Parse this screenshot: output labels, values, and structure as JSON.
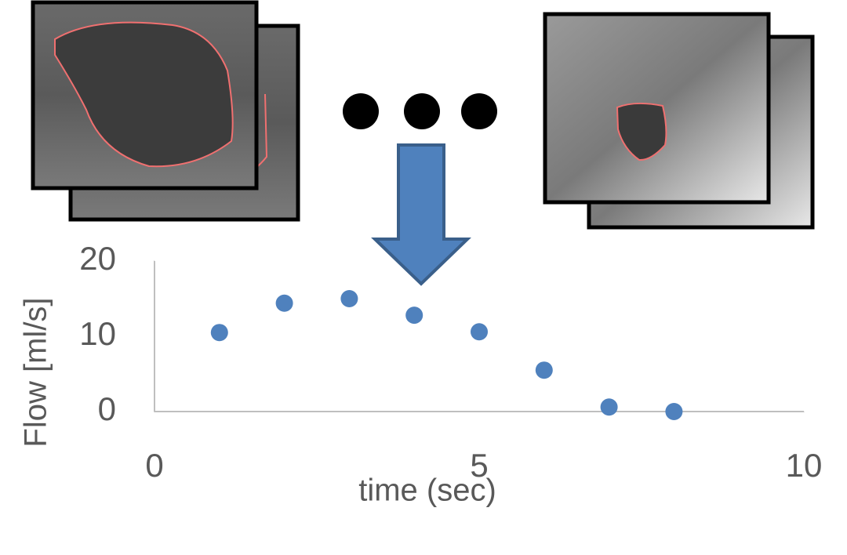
{
  "chart_data": {
    "type": "scatter",
    "x_label": "time (sec)",
    "y_label": "Flow [ml/s]",
    "x": [
      1,
      2,
      3,
      4,
      5,
      6,
      7,
      8
    ],
    "series": [
      {
        "color": "#4f81bd",
        "values": [
          10.5,
          14.4,
          15.0,
          12.8,
          10.6,
          5.5,
          0.6,
          0
        ]
      }
    ],
    "xlim": [
      0,
      10
    ],
    "xticks": [
      0,
      5,
      10
    ],
    "ylim": [
      0,
      20
    ],
    "yticks": [
      0,
      10,
      20
    ]
  }
}
